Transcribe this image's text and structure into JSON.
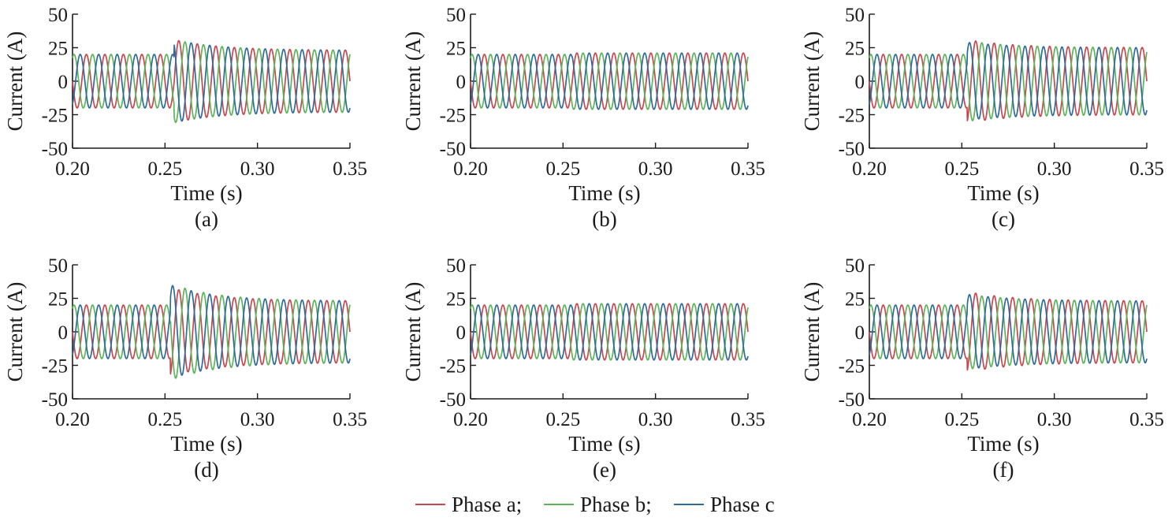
{
  "colors": {
    "phase_a": "#c8474f",
    "phase_b": "#5cb35a",
    "phase_c": "#2f6b9a",
    "axis": "#1a1a1a"
  },
  "legend": {
    "items": [
      {
        "label": "Phase a;",
        "color": "#c8474f"
      },
      {
        "label": "Phase b;",
        "color": "#5cb35a"
      },
      {
        "label": "Phase c",
        "color": "#2f6b9a"
      }
    ]
  },
  "chart_data": [
    {
      "type": "line",
      "panel_label": "(a)",
      "xlabel": "Time (s)",
      "ylabel": "Current (A)",
      "xlim": [
        0.2,
        0.35
      ],
      "ylim": [
        -50,
        50
      ],
      "xticks": [
        "0.20",
        "0.25",
        "0.30",
        "0.35"
      ],
      "yticks": [
        "50",
        "25",
        "0",
        "-25",
        "-50"
      ],
      "frequency_hz": 100,
      "event_time": 0.255,
      "series": [
        {
          "name": "Phase a",
          "phase_deg": 180,
          "amplitude_before": 20,
          "peak_after": 31,
          "amplitude_end": 23
        },
        {
          "name": "Phase b",
          "phase_deg": 60,
          "amplitude_before": 20,
          "peak_after": 31,
          "amplitude_end": 23
        },
        {
          "name": "Phase c",
          "phase_deg": -60,
          "amplitude_before": 20,
          "peak_after": 31,
          "amplitude_end": 23
        }
      ]
    },
    {
      "type": "line",
      "panel_label": "(b)",
      "xlabel": "Time (s)",
      "ylabel": "Current (A)",
      "xlim": [
        0.2,
        0.35
      ],
      "ylim": [
        -50,
        50
      ],
      "xticks": [
        "0.20",
        "0.25",
        "0.30",
        "0.35"
      ],
      "yticks": [
        "50",
        "25",
        "0",
        "-25",
        "-50"
      ],
      "frequency_hz": 100,
      "event_time": 0.255,
      "series": [
        {
          "name": "Phase a",
          "phase_deg": 180,
          "amplitude_before": 20,
          "peak_after": 21,
          "amplitude_end": 21
        },
        {
          "name": "Phase b",
          "phase_deg": 60,
          "amplitude_before": 20,
          "peak_after": 21,
          "amplitude_end": 21
        },
        {
          "name": "Phase c",
          "phase_deg": -60,
          "amplitude_before": 20,
          "peak_after": 21,
          "amplitude_end": 21
        }
      ]
    },
    {
      "type": "line",
      "panel_label": "(c)",
      "xlabel": "Time (s)",
      "ylabel": "Current (A)",
      "xlim": [
        0.2,
        0.35
      ],
      "ylim": [
        -50,
        50
      ],
      "xticks": [
        "0.20",
        "0.25",
        "0.30",
        "0.35"
      ],
      "yticks": [
        "50",
        "25",
        "0",
        "-25",
        "-50"
      ],
      "frequency_hz": 100,
      "event_time": 0.253,
      "series": [
        {
          "name": "Phase a",
          "phase_deg": 180,
          "amplitude_before": 20,
          "peak_after": 31,
          "amplitude_end": 25
        },
        {
          "name": "Phase b",
          "phase_deg": 60,
          "amplitude_before": 20,
          "peak_after": 30,
          "amplitude_end": 25
        },
        {
          "name": "Phase c",
          "phase_deg": -60,
          "amplitude_before": 20,
          "peak_after": 29,
          "amplitude_end": 25
        }
      ]
    },
    {
      "type": "line",
      "panel_label": "(d)",
      "xlabel": "Time (s)",
      "ylabel": "Current (A)",
      "xlim": [
        0.2,
        0.35
      ],
      "ylim": [
        -50,
        50
      ],
      "xticks": [
        "0.20",
        "0.25",
        "0.30",
        "0.35"
      ],
      "yticks": [
        "50",
        "25",
        "0",
        "-25",
        "-50"
      ],
      "frequency_hz": 100,
      "event_time": 0.253,
      "series": [
        {
          "name": "Phase a",
          "phase_deg": 180,
          "amplitude_before": 20,
          "peak_after": 33,
          "amplitude_end": 23
        },
        {
          "name": "Phase b",
          "phase_deg": 60,
          "amplitude_before": 20,
          "peak_after": 36,
          "amplitude_end": 23
        },
        {
          "name": "Phase c",
          "phase_deg": -60,
          "amplitude_before": 20,
          "peak_after": 35,
          "amplitude_end": 23
        }
      ]
    },
    {
      "type": "line",
      "panel_label": "(e)",
      "xlabel": "Time (s)",
      "ylabel": "Current (A)",
      "xlim": [
        0.2,
        0.35
      ],
      "ylim": [
        -50,
        50
      ],
      "xticks": [
        "0.20",
        "0.25",
        "0.30",
        "0.35"
      ],
      "yticks": [
        "50",
        "25",
        "0",
        "-25",
        "-50"
      ],
      "frequency_hz": 100,
      "event_time": 0.255,
      "series": [
        {
          "name": "Phase a",
          "phase_deg": 180,
          "amplitude_before": 20,
          "peak_after": 21,
          "amplitude_end": 21
        },
        {
          "name": "Phase b",
          "phase_deg": 60,
          "amplitude_before": 20,
          "peak_after": 21,
          "amplitude_end": 21
        },
        {
          "name": "Phase c",
          "phase_deg": -60,
          "amplitude_before": 20,
          "peak_after": 21,
          "amplitude_end": 21
        }
      ]
    },
    {
      "type": "line",
      "panel_label": "(f)",
      "xlabel": "Time (s)",
      "ylabel": "Current (A)",
      "xlim": [
        0.2,
        0.35
      ],
      "ylim": [
        -50,
        50
      ],
      "xticks": [
        "0.20",
        "0.25",
        "0.30",
        "0.35"
      ],
      "yticks": [
        "50",
        "25",
        "0",
        "-25",
        "-50"
      ],
      "frequency_hz": 100,
      "event_time": 0.253,
      "series": [
        {
          "name": "Phase a",
          "phase_deg": 180,
          "amplitude_before": 20,
          "peak_after": 30,
          "amplitude_end": 23
        },
        {
          "name": "Phase b",
          "phase_deg": 60,
          "amplitude_before": 20,
          "peak_after": 28,
          "amplitude_end": 23
        },
        {
          "name": "Phase c",
          "phase_deg": -60,
          "amplitude_before": 20,
          "peak_after": 28,
          "amplitude_end": 23
        }
      ]
    }
  ]
}
